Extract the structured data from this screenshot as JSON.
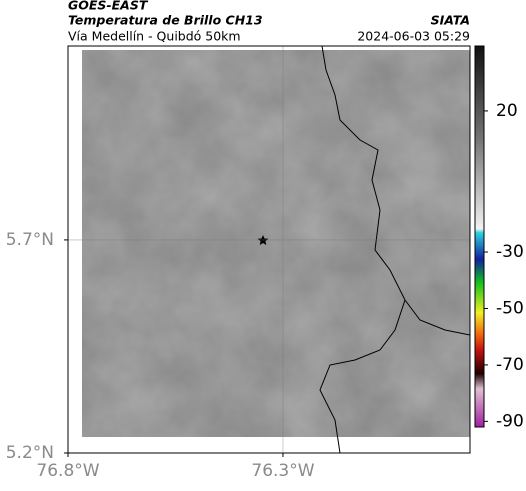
{
  "header": {
    "title": "GOES-EAST",
    "subtitle": "Temperatura de Brillo CH13",
    "source": "SIATA",
    "route": "Vía Medellín - Quibdó 50km",
    "datetime": "2024-06-03 05:29"
  },
  "map": {
    "xlim": [
      -76.8,
      -75.865
    ],
    "ylim": [
      5.2,
      6.155
    ],
    "xticks": [
      {
        "value": -76.8,
        "label": "76.8°W"
      },
      {
        "value": -76.3,
        "label": "76.3°W"
      }
    ],
    "yticks": [
      {
        "value": 5.7,
        "label": "5.7°N"
      },
      {
        "value": 5.2,
        "label": "5.2°N"
      }
    ],
    "grid": true
  },
  "colorbar": {
    "lim": [
      -92,
      43
    ],
    "ticks": [
      20,
      -30,
      -50,
      -70,
      -90
    ]
  }
}
